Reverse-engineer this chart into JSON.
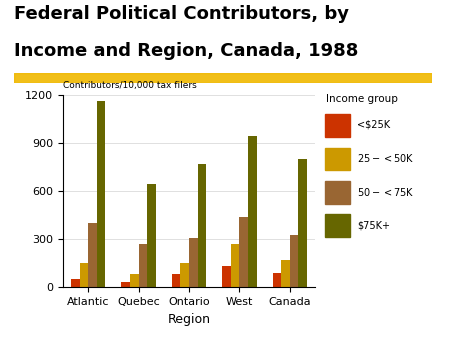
{
  "title_line1": "Federal Political Contributors, by",
  "title_line2": "Income and Region, Canada, 1988",
  "ylabel": "Contributors/10,000 tax filers",
  "xlabel": "Region",
  "legend_title": "Income group",
  "regions": [
    "Atlantic",
    "Quebec",
    "Ontario",
    "West",
    "Canada"
  ],
  "income_groups": [
    "<$25K",
    "$25-<$50K",
    "$50-<$75K",
    "$75K+"
  ],
  "bar_colors": [
    "#cc3300",
    "#cc9900",
    "#996633",
    "#666600"
  ],
  "data": [
    [
      50,
      30,
      80,
      130,
      90
    ],
    [
      150,
      80,
      150,
      270,
      170
    ],
    [
      400,
      270,
      305,
      440,
      325
    ],
    [
      1160,
      645,
      770,
      940,
      800
    ]
  ],
  "ylim": [
    0,
    1200
  ],
  "yticks": [
    0,
    300,
    600,
    900,
    1200
  ],
  "highlight_color": "#f0b800",
  "title_fontsize": 13,
  "axis_fontsize": 8
}
